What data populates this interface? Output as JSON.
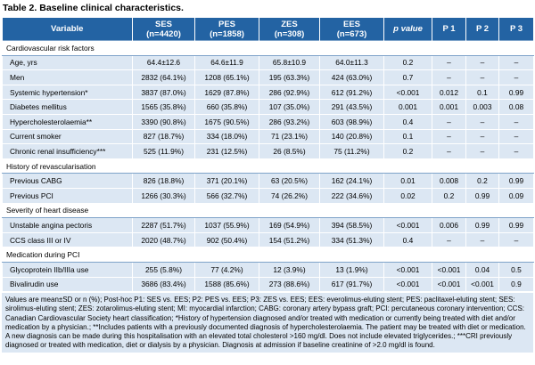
{
  "title": "Table 2. Baseline clinical characteristics.",
  "table": {
    "header": [
      "Variable",
      "SES\n(n=4420)",
      "PES\n(n=1858)",
      "ZES\n(n=308)",
      "EES\n(n=673)",
      "p value",
      "P 1",
      "P 2",
      "P 3"
    ],
    "sections": [
      {
        "title": "Cardiovascular risk factors",
        "rows": [
          [
            "Age, yrs",
            "64.4±12.6",
            "64.6±11.9",
            "65.8±10.9",
            "64.0±11.3",
            "0.2",
            "–",
            "–",
            "–"
          ],
          [
            "Men",
            "2832 (64.1%)",
            "1208 (65.1%)",
            "195 (63.3%)",
            "424 (63.0%)",
            "0.7",
            "–",
            "–",
            "–"
          ],
          [
            "Systemic hypertension*",
            "3837 (87.0%)",
            "1629 (87.8%)",
            "286 (92.9%)",
            "612 (91.2%)",
            "<0.001",
            "0.012",
            "0.1",
            "0.99"
          ],
          [
            "Diabetes mellitus",
            "1565 (35.8%)",
            "660 (35.8%)",
            "107 (35.0%)",
            "291 (43.5%)",
            "0.001",
            "0.001",
            "0.003",
            "0.08"
          ],
          [
            "Hypercholesterolaemia**",
            "3390 (90.8%)",
            "1675 (90.5%)",
            "286 (93.2%)",
            "603 (98.9%)",
            "0.4",
            "–",
            "–",
            "–"
          ],
          [
            "Current smoker",
            "827 (18.7%)",
            "334 (18.0%)",
            "71 (23.1%)",
            "140 (20.8%)",
            "0.1",
            "–",
            "–",
            "–"
          ],
          [
            "Chronic renal insufficiency***",
            "525 (11.9%)",
            "231 (12.5%)",
            "26 (8.5%)",
            "75 (11.2%)",
            "0.2",
            "–",
            "–",
            "–"
          ]
        ]
      },
      {
        "title": "History of revascularisation",
        "rows": [
          [
            "Previous CABG",
            "826 (18.8%)",
            "371 (20.1%)",
            "63 (20.5%)",
            "162 (24.1%)",
            "0.01",
            "0.008",
            "0.2",
            "0.99"
          ],
          [
            "Previous PCI",
            "1266 (30.3%)",
            "566 (32.7%)",
            "74 (26.2%)",
            "222 (34.6%)",
            "0.02",
            "0.2",
            "0.99",
            "0.09"
          ]
        ]
      },
      {
        "title": "Severity of heart disease",
        "rows": [
          [
            "Unstable angina pectoris",
            "2287 (51.7%)",
            "1037 (55.9%)",
            "169 (54.9%)",
            "394 (58.5%)",
            "<0.001",
            "0.006",
            "0.99",
            "0.99"
          ],
          [
            "CCS class III or IV",
            "2020 (48.7%)",
            "902 (50.4%)",
            "154 (51.2%)",
            "334 (51.3%)",
            "0.4",
            "–",
            "–",
            "–"
          ]
        ]
      },
      {
        "title": "Medication during PCI",
        "rows": [
          [
            "Glycoprotein IIb/IIIa use",
            "255 (5.8%)",
            "77 (4.2%)",
            "12 (3.9%)",
            "13 (1.9%)",
            "<0.001",
            "<0.001",
            "0.04",
            "0.5"
          ],
          [
            "Bivalirudin use",
            "3686 (83.4%)",
            "1588 (85.6%)",
            "273 (88.6%)",
            "617 (91.7%)",
            "<0.001",
            "<0.001",
            "<0.001",
            "0.9"
          ]
        ]
      }
    ]
  },
  "footnote": "Values are mean±SD or n (%); Post-hoc P1: SES vs. EES; P2: PES vs. EES; P3: ZES vs. EES; EES: everolimus-eluting stent; PES: paclitaxel-eluting stent; SES: sirolimus-eluting stent; ZES: zotarolimus-eluting stent; MI: myocardial infarction; CABG: coronary artery bypass graft; PCI: percutaneous coronary intervention; CCS: Canadian Cardiovascular Society heart classification; *History of hypertension diagnosed and/or treated with medication or currently being treated with diet and/or medication by a physician.; **Includes patients with a previously documented diagnosis of hypercholesterolaemia. The patient may be treated with diet or medication. A new diagnosis can be made during this hospitalisation with an elevated total cholesterol >160 mg/dl. Does not include elevated triglycerides.; ***CRI previously diagnosed or treated with medication, diet or dialysis by a physician. Diagnosis at admission if baseline creatinine of >2.0 mg/dl is found."
}
